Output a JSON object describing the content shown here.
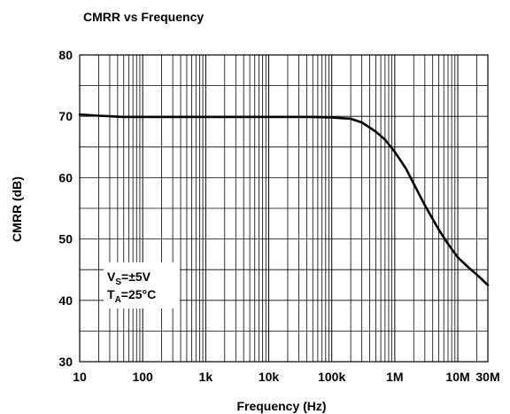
{
  "chart_data": {
    "type": "line",
    "title": "CMRR vs Frequency",
    "xlabel": "Frequency (Hz)",
    "ylabel": "CMRR (dB)",
    "xscale": "log",
    "xlim": [
      10,
      30000000
    ],
    "ylim": [
      30,
      80
    ],
    "grid": true,
    "legend": "none",
    "x_ticks": [
      {
        "value": 10,
        "label": "10"
      },
      {
        "value": 100,
        "label": "100"
      },
      {
        "value": 1000,
        "label": "1k"
      },
      {
        "value": 10000,
        "label": "10k"
      },
      {
        "value": 100000,
        "label": "100k"
      },
      {
        "value": 1000000,
        "label": "1M"
      },
      {
        "value": 10000000,
        "label": "10M"
      },
      {
        "value": 30000000,
        "label": "30M"
      }
    ],
    "y_ticks": [
      {
        "value": 30,
        "label": "30"
      },
      {
        "value": 40,
        "label": "40"
      },
      {
        "value": 50,
        "label": "50"
      },
      {
        "value": 60,
        "label": "60"
      },
      {
        "value": 70,
        "label": "70"
      },
      {
        "value": 80,
        "label": "80"
      }
    ],
    "annotation": {
      "line1_main": "V",
      "line1_sub": "S",
      "line1_rest": "=±5V",
      "line2_main": "T",
      "line2_sub": "A",
      "line2_rest": "=25°C"
    },
    "series": [
      {
        "x": [
          10,
          20,
          50,
          100,
          200,
          500,
          1000,
          2000,
          5000,
          10000,
          20000,
          50000,
          100000,
          200000,
          300000,
          500000,
          700000,
          1000000,
          1500000,
          2000000,
          3000000,
          5000000,
          7000000,
          10000000,
          15000000,
          20000000,
          30000000
        ],
        "y": [
          70.3,
          70.1,
          69.9,
          69.9,
          69.9,
          69.9,
          69.9,
          69.9,
          69.9,
          69.9,
          69.9,
          69.9,
          69.8,
          69.6,
          69.0,
          67.5,
          66.2,
          64.2,
          61.5,
          59.0,
          55.5,
          51.5,
          49.2,
          47.0,
          45.3,
          44.2,
          42.5
        ]
      }
    ],
    "colors": {
      "line": "#000000",
      "grid": "#000000",
      "background": "#ffffff"
    }
  }
}
